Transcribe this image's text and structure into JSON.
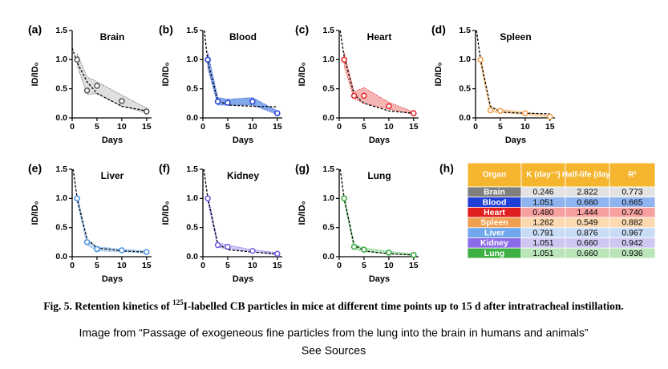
{
  "chart_data": [
    {
      "type": "line",
      "panel": "(a)",
      "title": "Brain",
      "xlabel": "Days",
      "ylabel": "ID/ID₀",
      "x": [
        1,
        3,
        5,
        10,
        15
      ],
      "values": [
        1.0,
        0.47,
        0.55,
        0.29,
        0.11
      ],
      "band_high": [
        1.1,
        0.7,
        0.62,
        0.39,
        0.17
      ],
      "band_low": [
        0.9,
        0.4,
        0.42,
        0.2,
        0.09
      ],
      "fit_x": [
        0,
        1,
        3,
        5,
        10,
        15
      ],
      "fit_values": [
        1.2,
        0.95,
        0.62,
        0.42,
        0.2,
        0.12
      ],
      "color": "#555555",
      "fill": "#d9d9d9",
      "xlim": [
        0,
        16
      ],
      "ylim": [
        0,
        1.5
      ],
      "xticks": [
        0,
        5,
        10,
        15
      ],
      "yticks": [
        {
          "value": 0,
          "label": "0.0"
        },
        0.5,
        {
          "value": 1,
          "label": "1.0"
        },
        1.5
      ]
    },
    {
      "type": "line",
      "panel": "(b)",
      "title": "Blood",
      "xlabel": "Days",
      "ylabel": "ID/ID₀",
      "x": [
        1,
        3,
        5,
        10,
        15
      ],
      "values": [
        1.0,
        0.28,
        0.26,
        0.28,
        0.08
      ],
      "band_high": [
        1.12,
        0.35,
        0.32,
        0.35,
        0.12
      ],
      "band_low": [
        0.85,
        0.22,
        0.22,
        0.22,
        0.06
      ],
      "fit_x": [
        0.3,
        1,
        3,
        5,
        10,
        15
      ],
      "fit_values": [
        1.5,
        0.95,
        0.3,
        0.22,
        0.2,
        0.19
      ],
      "color": "#1f3fd6",
      "fill": "#6f9be8",
      "xlim": [
        0,
        16
      ],
      "ylim": [
        0,
        1.5
      ],
      "xticks": [
        0,
        5,
        10,
        15
      ],
      "yticks": [
        {
          "value": 0,
          "label": "0.0"
        },
        0.5,
        {
          "value": 1,
          "label": "1.0"
        },
        1.5
      ]
    },
    {
      "type": "line",
      "panel": "(c)",
      "title": "Heart",
      "xlabel": "Days",
      "ylabel": "ID/ID₀",
      "x": [
        1,
        3,
        5,
        10,
        15
      ],
      "values": [
        1.0,
        0.38,
        0.38,
        0.2,
        0.08
      ],
      "band_high": [
        1.12,
        0.45,
        0.52,
        0.27,
        0.1
      ],
      "band_low": [
        0.88,
        0.33,
        0.25,
        0.15,
        0.06
      ],
      "fit_x": [
        0.2,
        1,
        3,
        5,
        10,
        15
      ],
      "fit_values": [
        1.5,
        1.05,
        0.4,
        0.25,
        0.12,
        0.08
      ],
      "color": "#e02020",
      "fill": "#f5a9a9",
      "xlim": [
        0,
        16
      ],
      "ylim": [
        0,
        1.5
      ],
      "xticks": [
        0,
        5,
        10,
        15
      ],
      "yticks": [
        {
          "value": 0,
          "label": "0.0"
        },
        0.5,
        {
          "value": 1,
          "label": "1.0"
        },
        1.5
      ]
    },
    {
      "type": "line",
      "panel": "(d)",
      "title": "Spleen",
      "xlabel": "Days",
      "ylabel": "ID/ID₀",
      "x": [
        1,
        3,
        5,
        10,
        15
      ],
      "values": [
        1.0,
        0.13,
        0.12,
        0.08,
        0.02
      ],
      "band_high": [
        1.08,
        0.17,
        0.15,
        0.1,
        0.04
      ],
      "band_low": [
        0.92,
        0.1,
        0.09,
        0.06,
        0.01
      ],
      "fit_x": [
        0.2,
        1,
        3,
        5,
        10,
        15
      ],
      "fit_values": [
        1.5,
        1.0,
        0.2,
        0.1,
        0.08,
        0.07
      ],
      "color": "#f0a050",
      "fill": "#fbd3a8",
      "xlim": [
        0,
        16
      ],
      "ylim": [
        0,
        1.5
      ],
      "xticks": [
        0,
        5,
        10,
        15
      ],
      "yticks": [
        {
          "value": 0,
          "label": "0.0"
        },
        0.5,
        {
          "value": 1,
          "label": "1.0"
        },
        1.5
      ]
    },
    {
      "type": "line",
      "panel": "(e)",
      "title": "Liver",
      "xlabel": "Days",
      "ylabel": "ID/ID₀",
      "x": [
        1,
        3,
        5,
        10,
        15
      ],
      "values": [
        1.0,
        0.25,
        0.13,
        0.11,
        0.08
      ],
      "band_high": [
        1.06,
        0.3,
        0.17,
        0.13,
        0.1
      ],
      "band_low": [
        0.94,
        0.2,
        0.1,
        0.09,
        0.06
      ],
      "fit_x": [
        0.2,
        1,
        3,
        5,
        10,
        15
      ],
      "fit_values": [
        1.5,
        1.0,
        0.3,
        0.15,
        0.1,
        0.08
      ],
      "color": "#4a90e2",
      "fill": "#bcd7f5",
      "xlim": [
        0,
        16
      ],
      "ylim": [
        0,
        1.5
      ],
      "xticks": [
        0,
        5,
        10,
        15
      ],
      "yticks": [
        {
          "value": 0,
          "label": "0.0"
        },
        0.5,
        {
          "value": 1,
          "label": "1.0"
        },
        1.5
      ]
    },
    {
      "type": "line",
      "panel": "(f)",
      "title": "Kidney",
      "xlabel": "Days",
      "ylabel": "ID/ID₀",
      "x": [
        1,
        3,
        5,
        10,
        15
      ],
      "values": [
        1.0,
        0.2,
        0.17,
        0.1,
        0.05
      ],
      "band_high": [
        1.06,
        0.24,
        0.2,
        0.12,
        0.07
      ],
      "band_low": [
        0.94,
        0.16,
        0.14,
        0.08,
        0.03
      ],
      "fit_x": [
        0.2,
        1,
        3,
        5,
        10,
        15
      ],
      "fit_values": [
        1.5,
        1.0,
        0.22,
        0.12,
        0.08,
        0.05
      ],
      "color": "#6a5be0",
      "fill": "#c8c0f0",
      "xlim": [
        0,
        16
      ],
      "ylim": [
        0,
        1.5
      ],
      "xticks": [
        0,
        5,
        10,
        15
      ],
      "yticks": [
        {
          "value": 0,
          "label": "0.0"
        },
        0.5,
        {
          "value": 1,
          "label": "1.0"
        },
        1.5
      ]
    },
    {
      "type": "line",
      "panel": "(g)",
      "title": "Lung",
      "xlabel": "Days",
      "ylabel": "ID/ID₀",
      "x": [
        1,
        3,
        5,
        10,
        15
      ],
      "values": [
        1.0,
        0.17,
        0.12,
        0.07,
        0.03
      ],
      "band_high": [
        1.05,
        0.21,
        0.15,
        0.09,
        0.05
      ],
      "band_low": [
        0.95,
        0.13,
        0.09,
        0.05,
        0.02
      ],
      "fit_x": [
        0.2,
        1,
        3,
        5,
        10,
        15
      ],
      "fit_values": [
        1.5,
        1.0,
        0.2,
        0.1,
        0.05,
        0.03
      ],
      "color": "#2fa83a",
      "fill": "#b8e6b8",
      "xlim": [
        0,
        16
      ],
      "ylim": [
        0,
        1.5
      ],
      "xticks": [
        0,
        5,
        10,
        15
      ],
      "yticks": [
        {
          "value": 0,
          "label": "0.0"
        },
        0.5,
        {
          "value": 1,
          "label": "1.0"
        },
        1.5
      ]
    }
  ],
  "table": {
    "panel": "(h)",
    "header": [
      "Organ",
      "K (day⁻¹)",
      "Half-life (day)",
      "R²"
    ],
    "rows": [
      [
        "Brain",
        "0.246",
        "2.822",
        "0.773"
      ],
      [
        "Blood",
        "1.051",
        "0.660",
        "0.665"
      ],
      [
        "Heart",
        "0.480",
        "1.444",
        "0.740"
      ],
      [
        "Spleen",
        "1.262",
        "0.549",
        "0.882"
      ],
      [
        "Liver",
        "0.791",
        "0.876",
        "0.967"
      ],
      [
        "Kidney",
        "1.051",
        "0.660",
        "0.942"
      ],
      [
        "Lung",
        "1.051",
        "0.660",
        "0.936"
      ]
    ],
    "organ_colors": [
      "#7f7f7f",
      "#1f3fd6",
      "#e02020",
      "#f0a050",
      "#6fa8ec",
      "#8c6be8",
      "#3cb043"
    ],
    "cell_colors": [
      "#e3e3e3",
      "#8fb4f0",
      "#f7a0a0",
      "#fcd9b0",
      "#c9dcf5",
      "#cfc6f2",
      "#b9e5b9"
    ],
    "header_color": "#f5b52e"
  },
  "caption": {
    "before": "Fig. 5. Retention kinetics of ",
    "sup": "125",
    "after": "I-labelled CB particles in mice at different time points up to 15 d after intratracheal instillation."
  },
  "source": [
    "Image from “Passage of exogeneous fine particles from the lung into the brain in humans and animals”",
    "See Sources"
  ]
}
